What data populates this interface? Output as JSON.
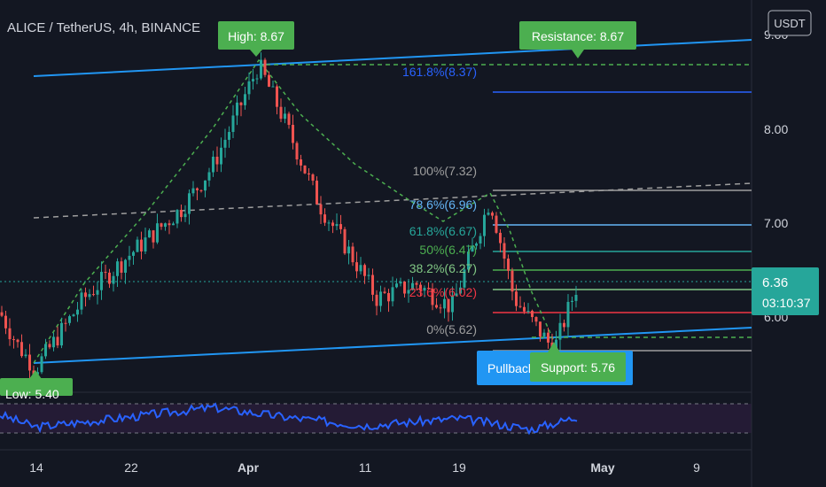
{
  "header": {
    "symbol_title": "ALICE / TetherUS, 4h, BINANCE",
    "currency_button": "USDT"
  },
  "price_axis": {
    "ticks": [
      "9.00",
      "8.00",
      "7.00",
      "6.00"
    ],
    "current_price": "6.36",
    "countdown": "03:10:37"
  },
  "time_axis": {
    "labels": [
      "14",
      "22",
      "Apr",
      "11",
      "19",
      "May",
      "9"
    ]
  },
  "callouts": {
    "high": "High: 8.67",
    "resistance": "Resistance: 8.67",
    "support": "Support: 5.76",
    "pullback": "Pullback",
    "low": "Low: 5.40"
  },
  "fib_levels": [
    {
      "label": "161.8%(8.37)",
      "color": "#2962ff"
    },
    {
      "label": "100%(7.32)",
      "color": "#9e9e9e"
    },
    {
      "label": "78.6%(6.96)",
      "color": "#64b5f6"
    },
    {
      "label": "61.8%(6.67)",
      "color": "#26a69a"
    },
    {
      "label": "50%(6.47)",
      "color": "#4caf50"
    },
    {
      "label": "38.2%(6.27)",
      "color": "#81c784"
    },
    {
      "label": "23.6%(6.02)",
      "color": "#f23645"
    },
    {
      "label": "0%(5.62)",
      "color": "#9e9e9e"
    }
  ],
  "colors": {
    "background": "#131722",
    "up": "#26a69a",
    "down": "#ef5350",
    "channel": "#2196f3",
    "callout_green": "#4caf50",
    "pullback_blue": "#2196f3",
    "rsi_line": "#2962ff",
    "rsi_band": "#2a1f3d",
    "price_label": "#26a69a"
  },
  "chart_data": {
    "type": "candlestick",
    "title": "ALICE / TetherUS, 4h, BINANCE",
    "ylim": [
      5.2,
      9.1
    ],
    "grid": false,
    "annotations": [
      "High: 8.67",
      "Resistance: 8.67",
      "Support: 5.76",
      "Pullback",
      "Low: 5.40"
    ],
    "series": [
      {
        "type": "close_path",
        "x": [
          "Mar 8",
          "Mar 12",
          "Mar 14",
          "Mar 18",
          "Mar 22",
          "Mar 26",
          "Mar 30",
          "Apr 2",
          "Apr 4",
          "Apr 7",
          "Apr 10",
          "Apr 13",
          "Apr 16",
          "Apr 19",
          "Apr 21",
          "Apr 24",
          "Apr 26",
          "Apr 28"
        ],
        "values": [
          6.05,
          5.7,
          5.45,
          6.2,
          6.65,
          7.15,
          7.6,
          8.67,
          8.1,
          7.2,
          6.6,
          6.2,
          6.35,
          6.1,
          7.25,
          6.2,
          5.65,
          6.36
        ]
      }
    ],
    "rsi": {
      "x": [
        "Mar 8",
        "Mar 14",
        "Mar 22",
        "Mar 30",
        "Apr 4",
        "Apr 11",
        "Apr 19",
        "Apr 24",
        "Apr 28"
      ],
      "values": [
        55,
        38,
        52,
        65,
        52,
        40,
        50,
        35,
        52
      ]
    }
  }
}
